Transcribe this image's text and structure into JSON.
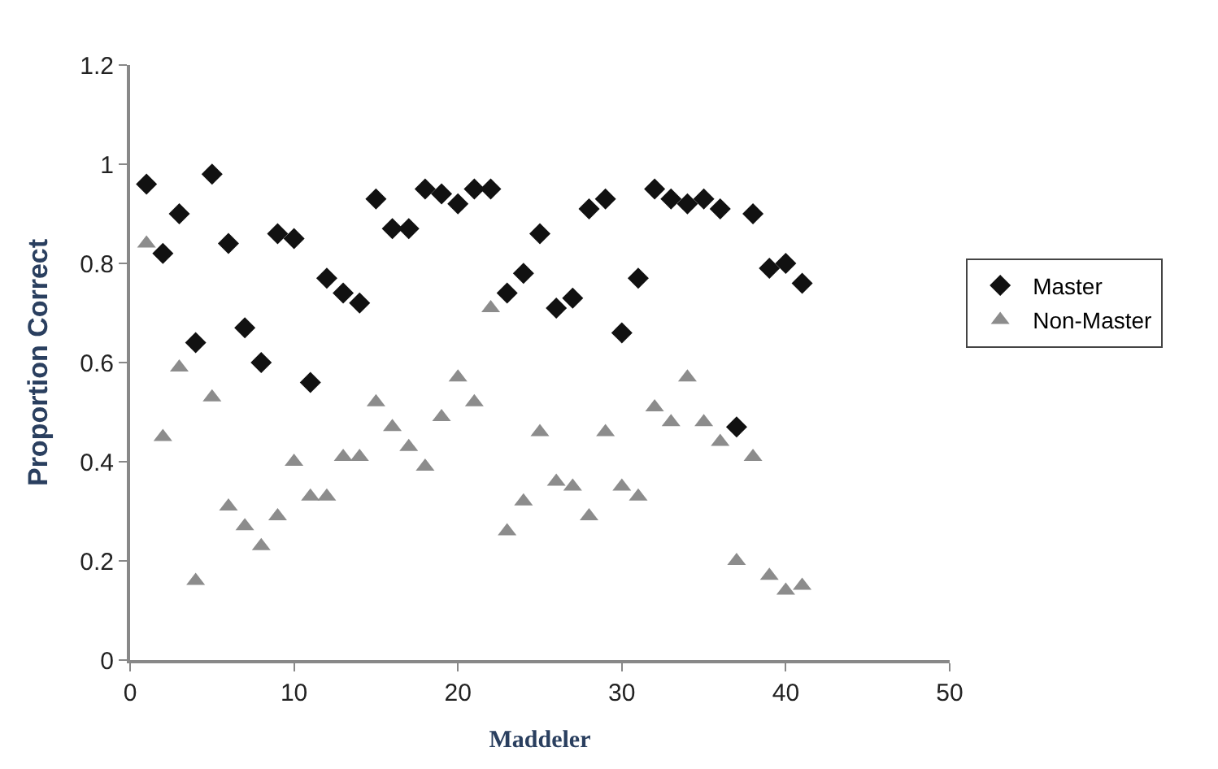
{
  "chart_data": {
    "type": "scatter",
    "xlabel": "Maddeler",
    "ylabel": "Proportion Correct",
    "x": [
      1,
      2,
      3,
      4,
      5,
      6,
      7,
      8,
      9,
      10,
      11,
      12,
      13,
      14,
      15,
      16,
      17,
      18,
      19,
      20,
      21,
      22,
      23,
      24,
      25,
      26,
      27,
      28,
      29,
      30,
      31,
      32,
      33,
      34,
      35,
      36,
      37,
      38,
      39,
      40,
      41
    ],
    "series": [
      {
        "name": "Master",
        "color": "#111111",
        "marker": "diamond",
        "values": [
          0.96,
          0.82,
          0.9,
          0.64,
          0.98,
          0.84,
          0.67,
          0.6,
          0.86,
          0.85,
          0.56,
          0.77,
          0.74,
          0.72,
          0.93,
          0.87,
          0.87,
          0.95,
          0.94,
          0.92,
          0.95,
          0.95,
          0.74,
          0.78,
          0.86,
          0.71,
          0.73,
          0.91,
          0.93,
          0.66,
          0.77,
          0.95,
          0.93,
          0.92,
          0.93,
          0.91,
          0.47,
          0.9,
          0.79,
          0.8,
          0.76
        ]
      },
      {
        "name": "Non-Master",
        "color": "#8c8c8c",
        "marker": "triangle",
        "values": [
          0.84,
          0.45,
          0.59,
          0.16,
          0.53,
          0.31,
          0.27,
          0.23,
          0.29,
          0.4,
          0.33,
          0.33,
          0.41,
          0.41,
          0.52,
          0.47,
          0.43,
          0.39,
          0.49,
          0.57,
          0.52,
          0.71,
          0.26,
          0.32,
          0.46,
          0.36,
          0.35,
          0.29,
          0.46,
          0.35,
          0.33,
          0.51,
          0.48,
          0.57,
          0.48,
          0.44,
          0.2,
          0.41,
          0.17,
          0.14,
          0.15
        ]
      }
    ],
    "xlim": [
      0,
      50
    ],
    "xticks": [
      0,
      10,
      20,
      30,
      40,
      50
    ],
    "ylim": [
      0,
      1.2
    ],
    "yticks": [
      0,
      0.2,
      0.4,
      0.6,
      0.8,
      1,
      1.2
    ],
    "legend": "right"
  }
}
